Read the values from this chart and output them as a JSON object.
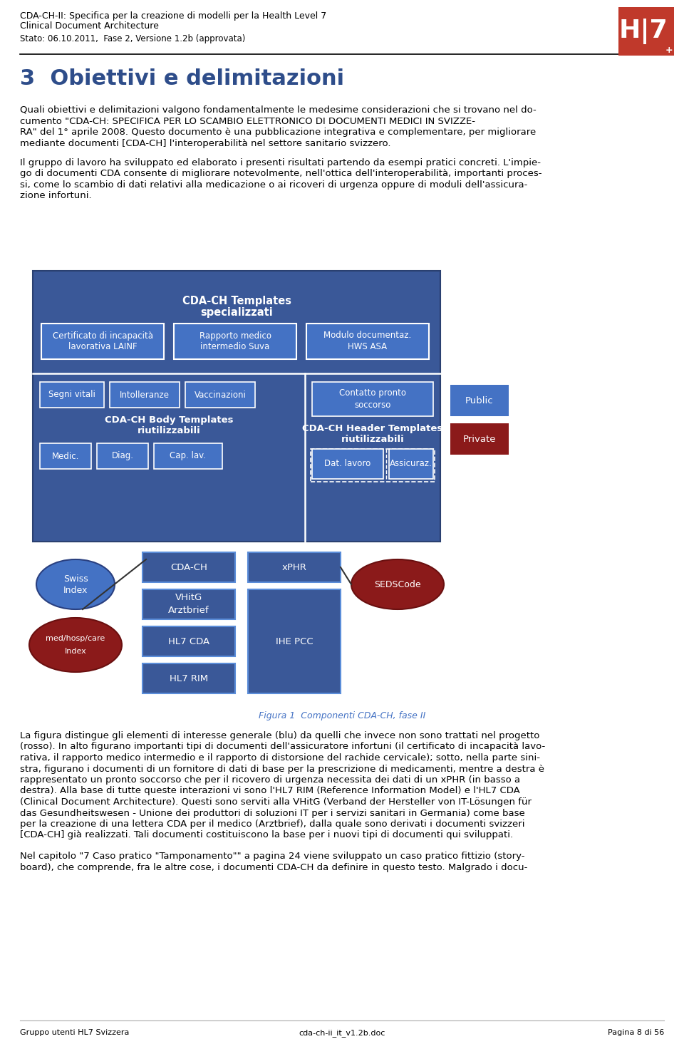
{
  "header_line1": "CDA-CH-II: Specifica per la creazione di modelli per la Health Level 7",
  "header_line2": "Clinical Document Architecture",
  "header_line3": "Stato: 06.10.2011,  Fase 2, Versione 1.2b (approvata)",
  "section_title": "3  Obiettivi e delimitazioni",
  "para1_lines": [
    "Quali obiettivi e delimitazioni valgono fondamentalmente le medesime considerazioni che si trovano nel do-",
    "cumento \"CDA-CH: SPECIFICA PER LO SCAMBIO ELETTRONICO DI DOCUMENTI MEDICI IN SVIZZE-",
    "RA\" del 1° aprile 2008. Questo documento è una pubblicazione integrativa e complementare, per migliorare",
    "mediante documenti [CDA-CH] l'interoperabilità nel settore sanitario svizzero."
  ],
  "para2_lines": [
    "Il gruppo di lavoro ha sviluppato ed elaborato i presenti risultati partendo da esempi pratici concreti. L'impie-",
    "go di documenti CDA consente di migliorare notevolmente, nell'ottica dell'interoperabilità, importanti proces-",
    "si, come lo scambio di dati relativi alla medicazione o ai ricoveri di urgenza oppure di moduli dell'assicura-",
    "zione infortuni."
  ],
  "figure_caption": "Figura 1  Componenti CDA-CH, fase II",
  "para3_lines": [
    "La figura distingue gli elementi di interesse generale (blu) da quelli che invece non sono trattati nel progetto",
    "(rosso). In alto figurano importanti tipi di documenti dell'assicuratore infortuni (il certificato di incapacità lavo-",
    "rativa, il rapporto medico intermedio e il rapporto di distorsione del rachide cervicale); sotto, nella parte sini-",
    "stra, figurano i documenti di un fornitore di dati di base per la prescrizione di medicamenti, mentre a destra è",
    "rappresentato un pronto soccorso che per il ricovero di urgenza necessita dei dati di un xPHR (in basso a",
    "destra). Alla base di tutte queste interazioni vi sono l'HL7 RIM (Reference Information Model) e l'HL7 CDA",
    "(Clinical Document Architecture). Questi sono serviti alla VHitG (Verband der Hersteller von IT-Lösungen für",
    "das Gesundheitswesen - Unione dei produttori di soluzioni IT per i servizi sanitari in Germania) come base",
    "per la creazione di una lettera CDA per il medico (Arztbrief), dalla quale sono derivati i documenti svizzeri",
    "[CDA-CH] già realizzati. Tali documenti costituiscono la base per i nuovi tipi di documenti qui sviluppati."
  ],
  "para4_lines": [
    "Nel capitolo \"7 Caso pratico \"Tamponamento\"\" a pagina 24 viene sviluppato un caso pratico fittizio (story-",
    "board), che comprende, fra le altre cose, i documenti CDA-CH da definire in questo testo. Malgrado i docu-"
  ],
  "footer_left": "Gruppo utenti HL7 Svizzera",
  "footer_center": "cda-ch-ii_it_v1.2b.doc",
  "footer_right": "Pagina 8 di 56",
  "blue_dark": "#3a5898",
  "blue_mid": "#4472c4",
  "blue_light": "#5b8dd9",
  "red_dark": "#8b1a1a",
  "section_title_color": "#2e4d8a",
  "white": "#ffffff",
  "black": "#000000",
  "caption_color": "#4472c4",
  "footer_line_color": "#aaaaaa"
}
